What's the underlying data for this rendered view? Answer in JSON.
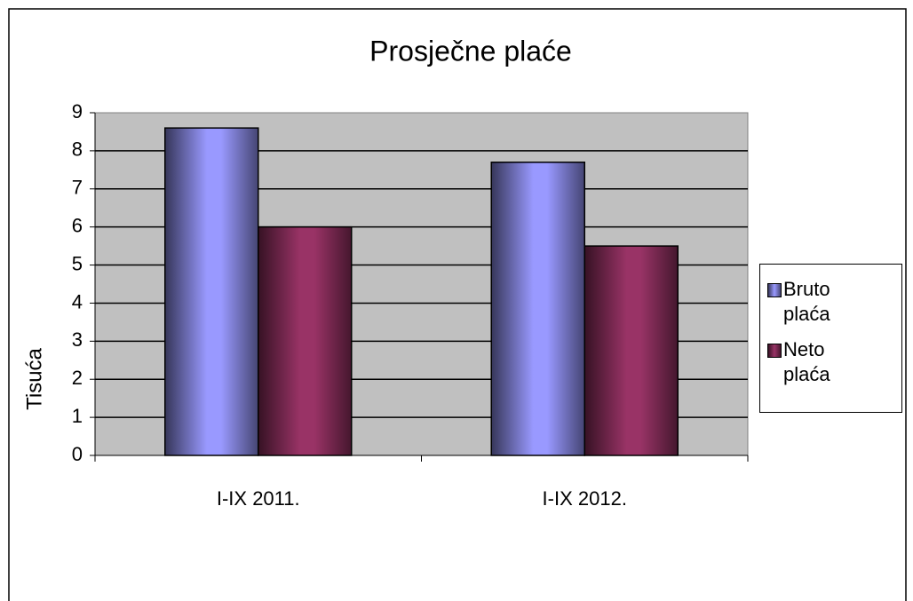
{
  "chart_data": {
    "type": "bar",
    "title": "Prosječne plaće",
    "y_label": "Tisuća",
    "categories": [
      "I-IX 2011.",
      "I-IX 2012."
    ],
    "series": [
      {
        "name": "Bruto plaća",
        "color": "#9999ff",
        "values": [
          8.6,
          7.7
        ]
      },
      {
        "name": "Neto plaća",
        "color": "#993366",
        "values": [
          6.0,
          5.5
        ]
      }
    ],
    "ylim": [
      0,
      9
    ],
    "yticks": [
      0,
      1,
      2,
      3,
      4,
      5,
      6,
      7,
      8,
      9
    ],
    "grid": true,
    "legend": "right"
  }
}
